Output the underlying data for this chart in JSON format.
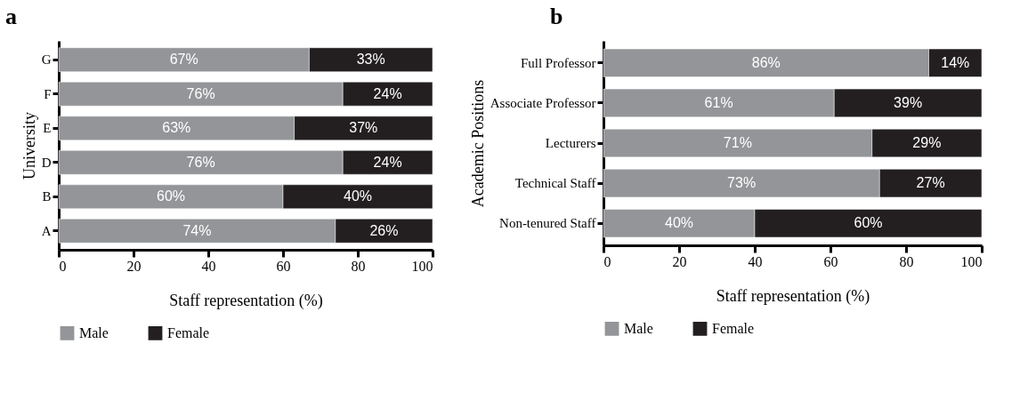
{
  "chart_data": [
    {
      "type": "bar",
      "title": "a",
      "orientation": "horizontal",
      "stacked": true,
      "categories": [
        "G",
        "F",
        "E",
        "D",
        "B",
        "A"
      ],
      "ylabel": "University",
      "xlabel": "Staff representation (%)",
      "xlim": [
        0,
        100
      ],
      "xticks": [
        0,
        20,
        40,
        60,
        80,
        100
      ],
      "grid": false,
      "legend": "bottom",
      "series": [
        {
          "name": "Male",
          "color": "#939598",
          "values": [
            67,
            76,
            63,
            76,
            60,
            74
          ],
          "value_labels": [
            "67%",
            "76%",
            "63%",
            "76%",
            "60%",
            "74%"
          ]
        },
        {
          "name": "Female",
          "color": "#231f20",
          "values": [
            33,
            24,
            37,
            24,
            40,
            26
          ],
          "value_labels": [
            "33%",
            "24%",
            "37%",
            "24%",
            "40%",
            "26%"
          ]
        }
      ]
    },
    {
      "type": "bar",
      "title": "b",
      "orientation": "horizontal",
      "stacked": true,
      "categories": [
        "Full Professor",
        "Associate Professor",
        "Lecturers",
        "Technical Staff",
        "Non-tenured Staff"
      ],
      "ylabel": "Academic Positions",
      "xlabel": "Staff representation (%)",
      "xlim": [
        0,
        100
      ],
      "xticks": [
        0,
        20,
        40,
        60,
        80,
        100
      ],
      "grid": false,
      "legend": "bottom",
      "series": [
        {
          "name": "Male",
          "color": "#939598",
          "values": [
            86,
            61,
            71,
            73,
            40
          ],
          "value_labels": [
            "86%",
            "61%",
            "71%",
            "73%",
            "40%"
          ]
        },
        {
          "name": "Female",
          "color": "#231f20",
          "values": [
            14,
            39,
            29,
            27,
            60
          ],
          "value_labels": [
            "14%",
            "39%",
            "29%",
            "27%",
            "60%"
          ]
        }
      ]
    }
  ]
}
